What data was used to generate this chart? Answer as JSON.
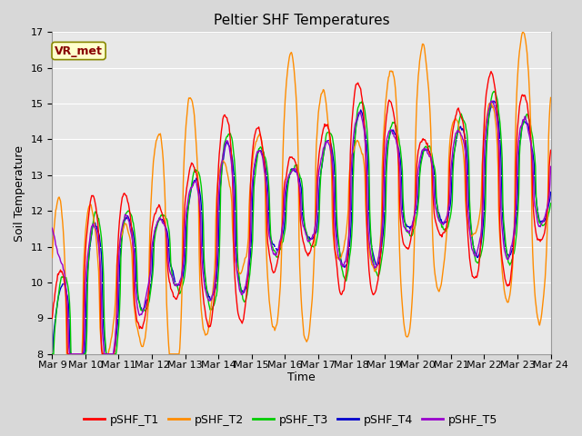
{
  "title": "Peltier SHF Temperatures",
  "xlabel": "Time",
  "ylabel": "Soil Temperature",
  "ylim": [
    8.0,
    17.0
  ],
  "yticks": [
    8.0,
    9.0,
    10.0,
    11.0,
    12.0,
    13.0,
    14.0,
    15.0,
    16.0,
    17.0
  ],
  "xtick_labels": [
    "Mar 9",
    "Mar 10",
    "Mar 11",
    "Mar 12",
    "Mar 13",
    "Mar 14",
    "Mar 15",
    "Mar 16",
    "Mar 17",
    "Mar 18",
    "Mar 19",
    "Mar 20",
    "Mar 21",
    "Mar 22",
    "Mar 23",
    "Mar 24"
  ],
  "series_colors": {
    "pSHF_T1": "#ff0000",
    "pSHF_T2": "#ff8c00",
    "pSHF_T3": "#00cc00",
    "pSHF_T4": "#0000cc",
    "pSHF_T5": "#9900cc"
  },
  "legend_colors": [
    "#ff0000",
    "#ff8c00",
    "#00cc00",
    "#0000cc",
    "#9900cc"
  ],
  "legend_labels": [
    "pSHF_T1",
    "pSHF_T2",
    "pSHF_T3",
    "pSHF_T4",
    "pSHF_T5"
  ],
  "annotation_text": "VR_met",
  "annotation_box_facecolor": "#ffffcc",
  "annotation_box_edgecolor": "#888800",
  "annotation_text_color": "#880000",
  "fig_facecolor": "#d8d8d8",
  "ax_facecolor": "#e8e8e8",
  "grid_color": "#ffffff",
  "linewidth": 1.0,
  "title_fontsize": 11,
  "axis_label_fontsize": 9,
  "tick_fontsize": 8,
  "legend_fontsize": 9,
  "figsize": [
    6.4,
    4.8
  ],
  "dpi": 100
}
